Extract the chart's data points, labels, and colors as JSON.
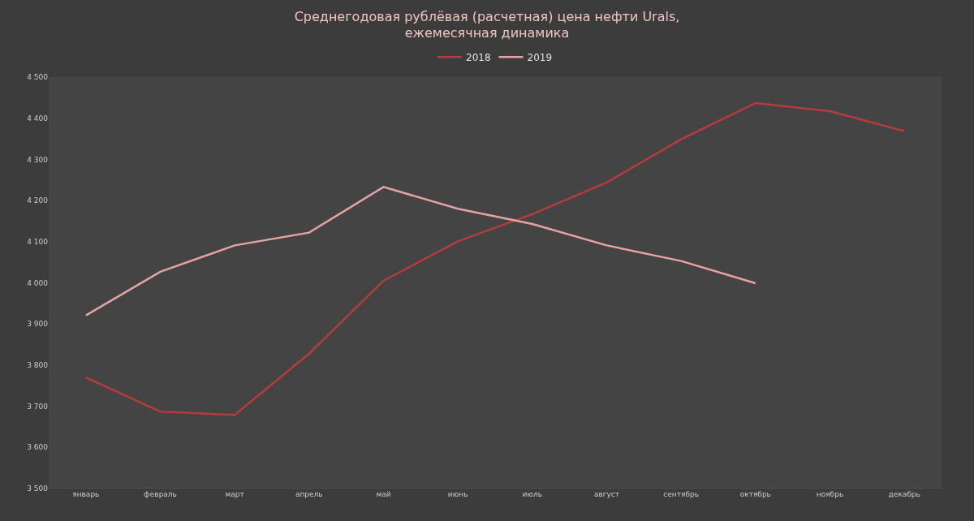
{
  "chart_data": {
    "type": "line",
    "title": "Среднегодовая рублёвая (расчетная) цена нефти Urals,\nежемесячная динамика",
    "categories": [
      "январь",
      "февраль",
      "март",
      "апрель",
      "май",
      "июнь",
      "июль",
      "август",
      "сентябрь",
      "октябрь",
      "ноябрь",
      "декабрь"
    ],
    "series": [
      {
        "name": "2018",
        "color": "#b43c3c",
        "values": [
          3770,
          3687,
          3679,
          3828,
          4005,
          4101,
          4167,
          4244,
          4349,
          4437,
          4417,
          4369
        ]
      },
      {
        "name": "2019",
        "color": "#e6a3a3",
        "values": [
          3921,
          4027,
          4091,
          4122,
          4233,
          4180,
          4143,
          4091,
          4053,
          3999,
          null,
          null
        ]
      }
    ],
    "ylim": [
      3500,
      4500
    ],
    "yticks": [
      {
        "value": 3500,
        "label": "3 500"
      },
      {
        "value": 3600,
        "label": "3 600"
      },
      {
        "value": 3700,
        "label": "3 700"
      },
      {
        "value": 3800,
        "label": "3 800"
      },
      {
        "value": 3900,
        "label": "3 900"
      },
      {
        "value": 4000,
        "label": "4 000"
      },
      {
        "value": 4100,
        "label": "4 100"
      },
      {
        "value": 4200,
        "label": "4 200"
      },
      {
        "value": 4300,
        "label": "4 300"
      },
      {
        "value": 4400,
        "label": "4 400"
      },
      {
        "value": 4500,
        "label": "4 500"
      }
    ],
    "grid": false,
    "legend": "top",
    "marker": "none",
    "line_style": "solid"
  }
}
